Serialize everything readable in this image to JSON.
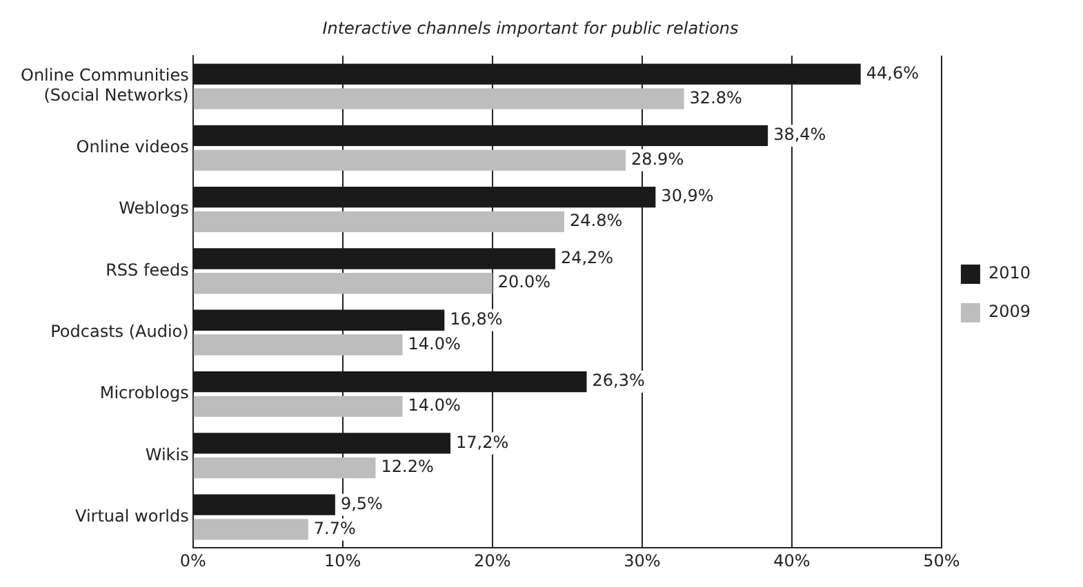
{
  "chart_data": {
    "type": "bar",
    "orientation": "horizontal",
    "title": "Interactive channels important for public relations",
    "categories": [
      "Online Communities (Social Networks)",
      "Online videos",
      "Weblogs",
      "RSS feeds",
      "Podcasts (Audio)",
      "Microblogs",
      "Wikis",
      "Virtual worlds"
    ],
    "series": [
      {
        "name": "2010",
        "color": "#1a1a1a",
        "values": [
          44.6,
          38.4,
          30.9,
          24.2,
          16.8,
          26.3,
          17.2,
          9.5
        ],
        "value_labels": [
          "44,6%",
          "38,4%",
          "30,9%",
          "24,2%",
          "16,8%",
          "26,3%",
          "17,2%",
          "9,5%"
        ]
      },
      {
        "name": "2009",
        "color": "#bdbdbd",
        "values": [
          32.8,
          28.9,
          24.8,
          20.0,
          14.0,
          14.0,
          12.2,
          7.7
        ],
        "value_labels": [
          "32.8%",
          "28.9%",
          "24.8%",
          "20.0%",
          "14.0%",
          "14.0%",
          "12.2%",
          "7.7%"
        ]
      }
    ],
    "xlim": [
      0,
      50
    ],
    "xticks": [
      {
        "value": 0,
        "label": "0%"
      },
      {
        "value": 10,
        "label": "10%"
      },
      {
        "value": 20,
        "label": "20%"
      },
      {
        "value": 30,
        "label": "30%"
      },
      {
        "value": 40,
        "label": "40%"
      },
      {
        "value": 50,
        "label": "50%"
      }
    ],
    "grid": "x",
    "legend": "right"
  }
}
